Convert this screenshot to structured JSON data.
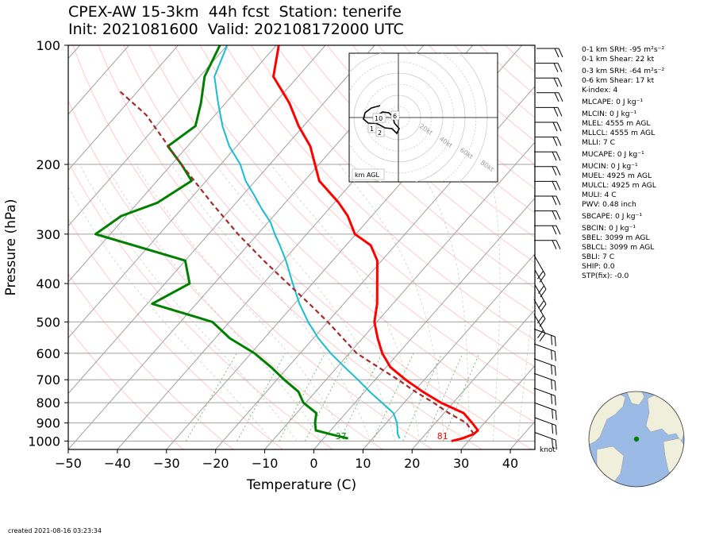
{
  "title": {
    "line1": "CPEX-AW 15-3km  44h fcst  Station: tenerife",
    "line2": "Init: 2021081600  Valid: 202108172000 UTC"
  },
  "created": "created 2021-08-16 03:23:34",
  "stats": [
    "0-1 km SRH: -95 m²s⁻²",
    "0-1 km Shear: 22 kt",
    "0-3 km SRH: -64 m²s⁻²",
    "0-6 km Shear: 17 kt",
    "K-index: 4",
    "MLCAPE: 0 J kg⁻¹",
    "MLCIN: 0 J kg⁻¹",
    "MLEL: 4555 m AGL",
    "MLLCL: 4555 m AGL",
    "MLLI: 7 C",
    "MUCAPE: 0 J kg⁻¹",
    "MUCIN: 0 J kg⁻¹",
    "MUEL: 4925 m AGL",
    "MULCL: 4925 m AGL",
    "MULI: 4 C",
    "PWV: 0.48 inch",
    "SBCAPE: 0 J kg⁻¹",
    "SBCIN: 0 J kg⁻¹",
    "SBEL: 3099 m AGL",
    "SBLCL: 3099 m AGL",
    "SBLI: 7 C",
    "SHIP: 0.0",
    "STP(fix): -0.0"
  ],
  "hodograph": {
    "unit_label": "km AGL",
    "ring_labels": [
      "20kt",
      "40kt",
      "60kt",
      "80kt"
    ],
    "height_labels": [
      "10",
      "6",
      "1",
      "2"
    ]
  },
  "barb_unit": "knot",
  "colors": {
    "temperature": "#ff0000",
    "dewpoint": "#008000",
    "wetbulb": "#17becf",
    "parcel": "#a52a2a",
    "isotherm": "#a0a0a0",
    "dry_adiabat": "#ffb0b0",
    "moist_adiabat": "#c8c8c8",
    "mixing_ratio": "#66bb66",
    "ocean": "#9bbbe6",
    "land": "#efefdc"
  },
  "chart_data": {
    "type": "line",
    "subtype": "skew-T log-P diagram",
    "xlabel": "Temperature (C)",
    "ylabel": "Pressure (hPa)",
    "xlim": [
      -50,
      45
    ],
    "ylim": [
      1050,
      100
    ],
    "y_scale": "log",
    "x_ticks": [
      -50,
      -40,
      -30,
      -20,
      -10,
      0,
      10,
      20,
      30,
      40
    ],
    "y_ticks": [
      100,
      200,
      300,
      400,
      500,
      600,
      700,
      800,
      900,
      1000
    ],
    "surface_labels": {
      "temperature_f": "81",
      "dewpoint_f": "37"
    },
    "series": [
      {
        "key": "temperature",
        "points": [
          [
            26.5,
            1000
          ],
          [
            28.2,
            985
          ],
          [
            29.8,
            960
          ],
          [
            30.0,
            940
          ],
          [
            27.5,
            900
          ],
          [
            24.0,
            850
          ],
          [
            17.5,
            800
          ],
          [
            11.8,
            750
          ],
          [
            6.2,
            700
          ],
          [
            0.8,
            650
          ],
          [
            -3.3,
            600
          ],
          [
            -6.9,
            550
          ],
          [
            -10.5,
            500
          ],
          [
            -13.2,
            450
          ],
          [
            -16.8,
            400
          ],
          [
            -20.9,
            350
          ],
          [
            -25.0,
            320
          ],
          [
            -30.2,
            300
          ],
          [
            -34.9,
            270
          ],
          [
            -39.1,
            250
          ],
          [
            -47.0,
            220
          ],
          [
            -50.8,
            200
          ],
          [
            -55.0,
            180
          ],
          [
            -61.0,
            160
          ],
          [
            -67.0,
            140
          ],
          [
            -75.0,
            120
          ],
          [
            -79.5,
            100
          ]
        ]
      },
      {
        "key": "dewpoint",
        "points": [
          [
            5.0,
            985
          ],
          [
            0.5,
            960
          ],
          [
            -3.0,
            940
          ],
          [
            -4.5,
            900
          ],
          [
            -6.0,
            850
          ],
          [
            -10.5,
            800
          ],
          [
            -13.5,
            750
          ],
          [
            -18.5,
            700
          ],
          [
            -23.5,
            650
          ],
          [
            -29.3,
            600
          ],
          [
            -37.0,
            550
          ],
          [
            -43.5,
            500
          ],
          [
            -59.0,
            450
          ],
          [
            -55.0,
            400
          ],
          [
            -60.0,
            350
          ],
          [
            -83.0,
            300
          ],
          [
            -81.0,
            270
          ],
          [
            -76.0,
            250
          ],
          [
            -73.0,
            220
          ],
          [
            -78.0,
            200
          ],
          [
            -84.0,
            180
          ],
          [
            -82.0,
            160
          ],
          [
            -85.0,
            140
          ],
          [
            -89.0,
            120
          ],
          [
            -91.5,
            100
          ]
        ]
      },
      {
        "key": "wetbulb",
        "points": [
          [
            15.5,
            985
          ],
          [
            14.3,
            960
          ],
          [
            12.2,
            900
          ],
          [
            9.7,
            850
          ],
          [
            5.5,
            800
          ],
          [
            1.0,
            750
          ],
          [
            -3.5,
            700
          ],
          [
            -8.5,
            650
          ],
          [
            -13.8,
            600
          ],
          [
            -19.0,
            550
          ],
          [
            -24.0,
            500
          ],
          [
            -29.0,
            450
          ],
          [
            -34.0,
            400
          ],
          [
            -39.5,
            350
          ],
          [
            -43.5,
            320
          ],
          [
            -46.5,
            300
          ],
          [
            -49.5,
            280
          ],
          [
            -53.5,
            260
          ],
          [
            -57.5,
            240
          ],
          [
            -62.0,
            220
          ],
          [
            -66.0,
            200
          ],
          [
            -71.5,
            180
          ],
          [
            -76.5,
            160
          ],
          [
            -81.5,
            140
          ],
          [
            -87.0,
            120
          ],
          [
            -90.0,
            100
          ]
        ]
      },
      {
        "key": "parcel",
        "points": [
          [
            29.8,
            960
          ],
          [
            26.3,
            900
          ],
          [
            21.0,
            850
          ],
          [
            16.0,
            800
          ],
          [
            10.3,
            750
          ],
          [
            4.7,
            700
          ],
          [
            -1.7,
            650
          ],
          [
            -8.5,
            600
          ],
          [
            -14.0,
            550
          ],
          [
            -20.0,
            500
          ],
          [
            -27.0,
            450
          ],
          [
            -35.0,
            400
          ],
          [
            -44.0,
            350
          ],
          [
            -54.0,
            300
          ],
          [
            -65.0,
            250
          ],
          [
            -78.0,
            200
          ],
          [
            -94.0,
            150
          ],
          [
            -104.0,
            130
          ]
        ]
      }
    ]
  }
}
